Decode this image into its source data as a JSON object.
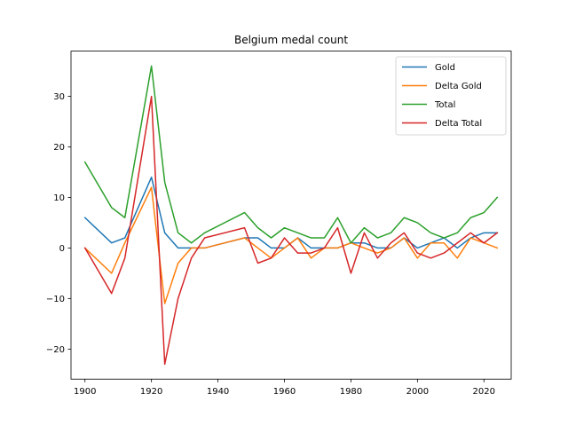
{
  "chart_data": {
    "type": "line",
    "title": "Belgium medal count",
    "xlabel": "",
    "ylabel": "",
    "xlim": [
      1895.8,
      2028.2
    ],
    "ylim": [
      -25.95,
      38.95
    ],
    "xticks": [
      1900,
      1920,
      1940,
      1960,
      1980,
      2000,
      2020
    ],
    "yticks": [
      -20,
      -10,
      0,
      10,
      20,
      30
    ],
    "legend": "top-right",
    "grid": false,
    "x": [
      1900,
      1908,
      1912,
      1920,
      1924,
      1928,
      1932,
      1936,
      1948,
      1952,
      1956,
      1960,
      1964,
      1968,
      1972,
      1976,
      1980,
      1984,
      1988,
      1992,
      1996,
      2000,
      2004,
      2008,
      2012,
      2016,
      2020,
      2024
    ],
    "series": [
      {
        "name": "Gold",
        "color": "#1f77b4",
        "values": [
          6,
          1,
          2,
          14,
          3,
          0,
          0,
          0,
          2,
          2,
          0,
          0,
          2,
          0,
          0,
          0,
          1,
          1,
          0,
          0,
          2,
          0,
          1,
          2,
          0,
          2,
          3,
          3
        ]
      },
      {
        "name": "Delta Gold",
        "color": "#ff7f0e",
        "values": [
          0,
          -5,
          1,
          12,
          -11,
          -3,
          0,
          0,
          2,
          0,
          -2,
          0,
          2,
          -2,
          0,
          0,
          1,
          0,
          -1,
          0,
          2,
          -2,
          1,
          1,
          -2,
          2,
          1,
          0
        ]
      },
      {
        "name": "Total",
        "color": "#2ca02c",
        "values": [
          17,
          8,
          6,
          36,
          13,
          3,
          1,
          3,
          7,
          4,
          2,
          4,
          3,
          2,
          2,
          6,
          1,
          4,
          2,
          3,
          6,
          5,
          3,
          2,
          3,
          6,
          7,
          10
        ]
      },
      {
        "name": "Delta Total",
        "color": "#d62728",
        "values": [
          0,
          -9,
          -2,
          30,
          -23,
          -10,
          -2,
          2,
          4,
          -3,
          -2,
          2,
          -1,
          -1,
          0,
          4,
          -5,
          3,
          -2,
          1,
          3,
          -1,
          -2,
          -1,
          1,
          3,
          1,
          3
        ]
      }
    ]
  }
}
